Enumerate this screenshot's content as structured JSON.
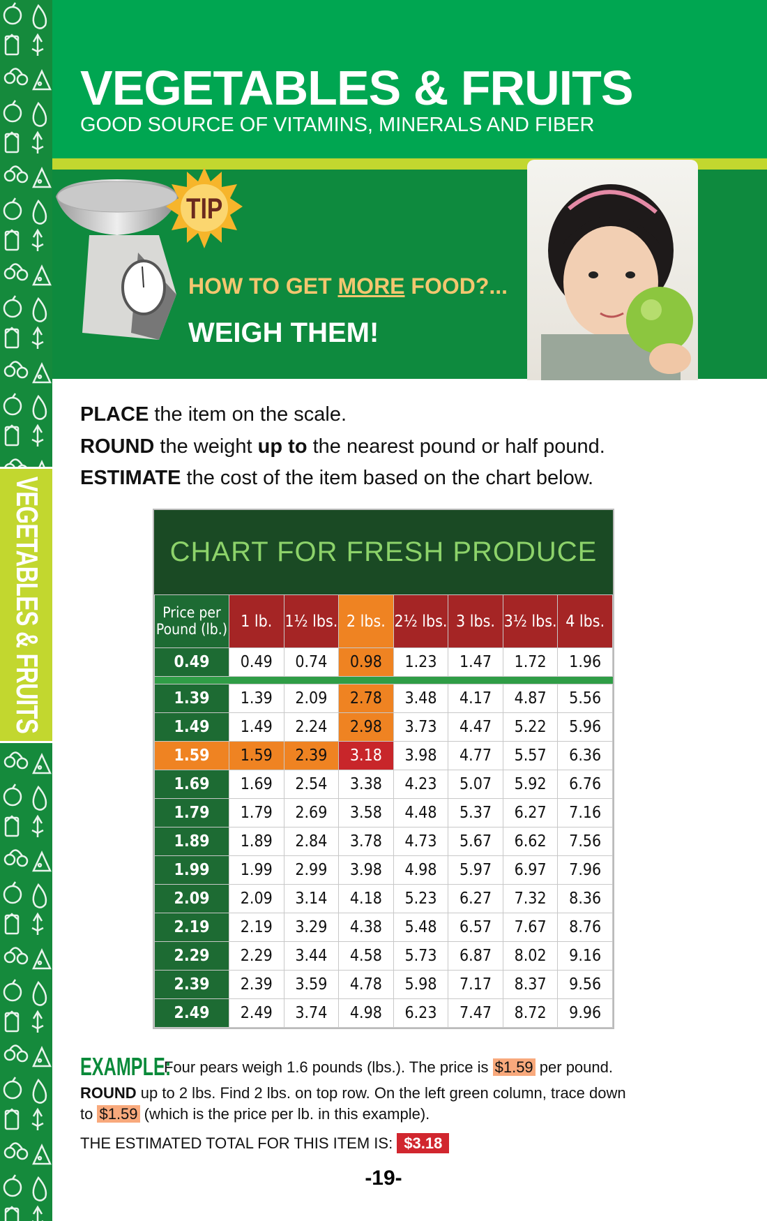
{
  "header": {
    "title": "VEGETABLES & FRUITS",
    "subtitle": "GOOD SOURCE OF VITAMINS, MINERALS AND FIBER"
  },
  "side_tab": "VEGETABLES & FRUITS",
  "tip": {
    "badge": "TIP",
    "question_a": "HOW TO GET ",
    "question_b": "MORE",
    "question_c": " FOOD?...",
    "answer": "WEIGH THEM!"
  },
  "instructions": [
    {
      "bold": "PLACE",
      "text": " the item on the scale."
    },
    {
      "bold": "ROUND",
      "text": " the weight ",
      "bold2": "up to",
      "text2": " the nearest pound or half pound."
    },
    {
      "bold": "ESTIMATE",
      "text": " the cost of the item based on the chart below."
    }
  ],
  "colors": {
    "header": "#00a651",
    "stripe": "#c2d72f",
    "band": "#0e8a3e",
    "table_title_bg": "#1a4a24",
    "price_col": "#1d6b33",
    "weight_header": "#a52525",
    "highlight_orange": "#ef8322",
    "highlight_red": "#c8262a"
  },
  "chart_data": {
    "type": "table",
    "title": "CHART FOR FRESH PRODUCE",
    "columns": [
      "Price per Pound (lb.)",
      "1 lb.",
      "1½ lbs.",
      "2 lbs.",
      "2½ lbs.",
      "3 lbs.",
      "3½ lbs.",
      "4 lbs."
    ],
    "rows": [
      [
        "0.49",
        "0.49",
        "0.74",
        "0.98",
        "1.23",
        "1.47",
        "1.72",
        "1.96"
      ],
      [
        "1.39",
        "1.39",
        "2.09",
        "2.78",
        "3.48",
        "4.17",
        "4.87",
        "5.56"
      ],
      [
        "1.49",
        "1.49",
        "2.24",
        "2.98",
        "3.73",
        "4.47",
        "5.22",
        "5.96"
      ],
      [
        "1.59",
        "1.59",
        "2.39",
        "3.18",
        "3.98",
        "4.77",
        "5.57",
        "6.36"
      ],
      [
        "1.69",
        "1.69",
        "2.54",
        "3.38",
        "4.23",
        "5.07",
        "5.92",
        "6.76"
      ],
      [
        "1.79",
        "1.79",
        "2.69",
        "3.58",
        "4.48",
        "5.37",
        "6.27",
        "7.16"
      ],
      [
        "1.89",
        "1.89",
        "2.84",
        "3.78",
        "4.73",
        "5.67",
        "6.62",
        "7.56"
      ],
      [
        "1.99",
        "1.99",
        "2.99",
        "3.98",
        "4.98",
        "5.97",
        "6.97",
        "7.96"
      ],
      [
        "2.09",
        "2.09",
        "3.14",
        "4.18",
        "5.23",
        "6.27",
        "7.32",
        "8.36"
      ],
      [
        "2.19",
        "2.19",
        "3.29",
        "4.38",
        "5.48",
        "6.57",
        "7.67",
        "8.76"
      ],
      [
        "2.29",
        "2.29",
        "3.44",
        "4.58",
        "5.73",
        "6.87",
        "8.02",
        "9.16"
      ],
      [
        "2.39",
        "2.39",
        "3.59",
        "4.78",
        "5.98",
        "7.17",
        "8.37",
        "9.56"
      ],
      [
        "2.49",
        "2.49",
        "3.74",
        "4.98",
        "6.23",
        "7.47",
        "8.72",
        "9.96"
      ]
    ]
  },
  "example": {
    "label": "EXAMPLE:",
    "line1_a": "Four pears weigh 1.6 pounds (lbs.). The price is ",
    "price": "$1.59",
    "line1_b": " per pound.",
    "line2_bold": "ROUND",
    "line2": " up to  2 lbs.  Find 2 lbs. on top row. On the left green column, trace down",
    "line3_a": "to ",
    "line3_b": " (which is the price per lb. in this example).",
    "total_label": "THE ESTIMATED TOTAL FOR THIS ITEM IS: ",
    "total": "$3.18"
  },
  "page_number": "-19-"
}
